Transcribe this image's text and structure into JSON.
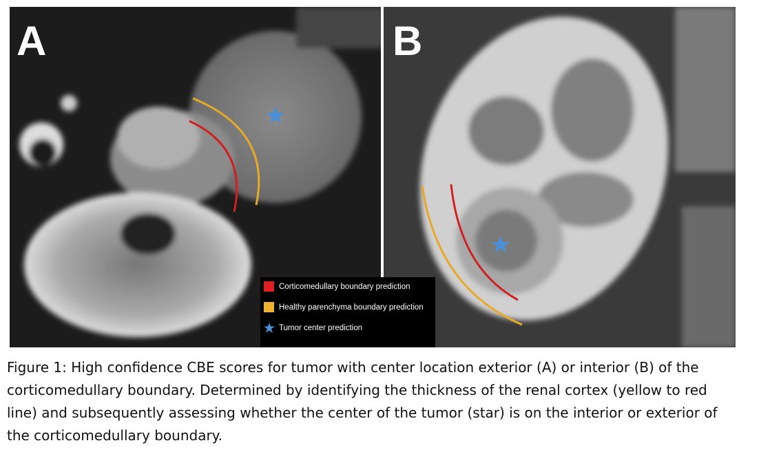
{
  "figure": {
    "panels": [
      {
        "label": "A"
      },
      {
        "label": "B"
      }
    ],
    "legend": {
      "items": [
        {
          "label": "Corticomedullary boundary prediction"
        },
        {
          "label": "Healthy parenchyma boundary prediction"
        },
        {
          "label": "Tumor center prediction"
        }
      ]
    },
    "caption": {
      "lines": [
        "Figure 1: High confidence CBE scores for tumor with center location exterior (A) or interior (B) of the",
        "corticomedullary boundary. Determined by identifying the thickness of the renal cortex (yellow to red",
        "line) and subsequently assessing whether the center of the tumor (star) is on the interior or exterior of",
        "the corticomedullary boundary."
      ]
    }
  }
}
